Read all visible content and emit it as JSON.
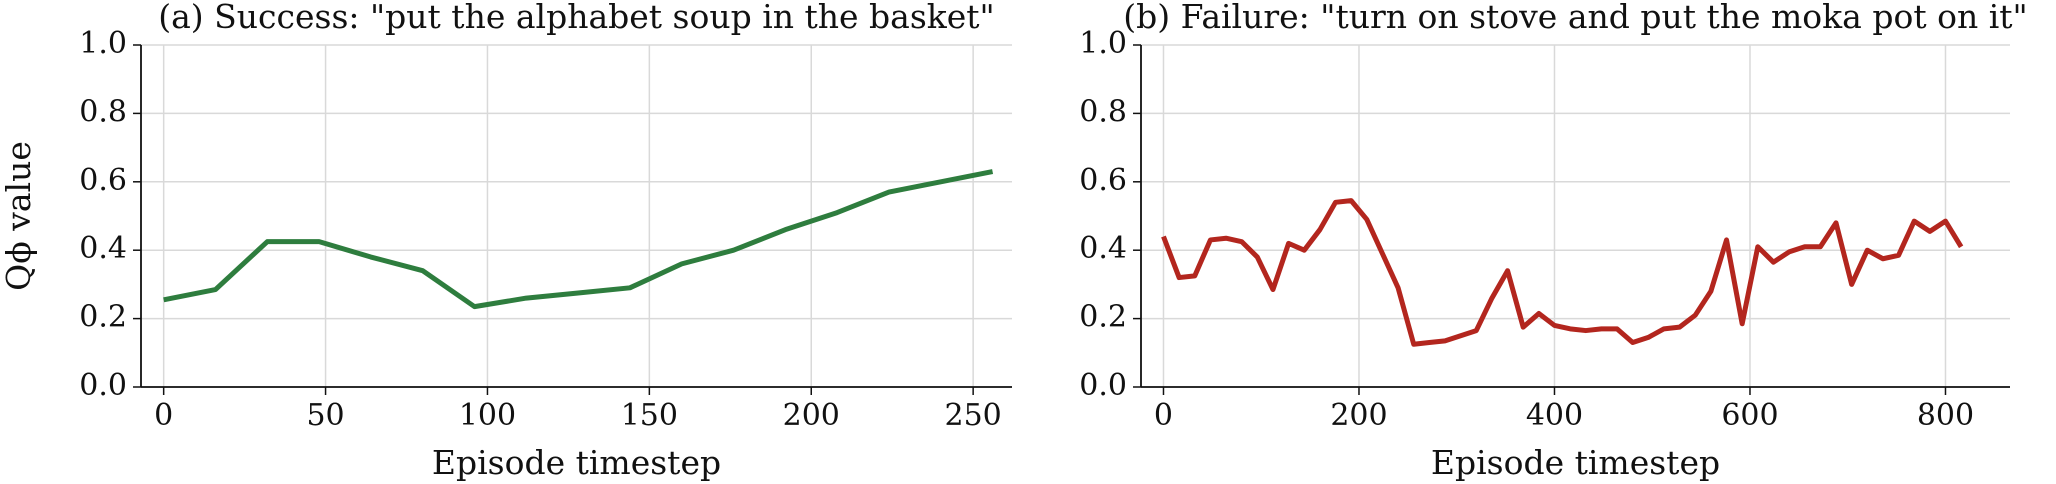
{
  "chart_data": [
    {
      "type": "line",
      "title": "(a) Success: \"put the alphabet soup in the basket\"",
      "xlabel": "Episode timestep",
      "ylabel": "Qϕ value",
      "x": [
        0,
        16,
        32,
        48,
        64,
        80,
        96,
        112,
        128,
        144,
        160,
        176,
        192,
        208,
        224,
        240,
        256
      ],
      "values": [
        0.255,
        0.285,
        0.425,
        0.425,
        0.38,
        0.34,
        0.235,
        0.26,
        0.275,
        0.29,
        0.36,
        0.4,
        0.46,
        0.51,
        0.57,
        0.6,
        0.63
      ],
      "color": "#2e7d3e",
      "xlim": [
        -7,
        262
      ],
      "xticks": [
        0,
        50,
        100,
        150,
        200,
        250
      ],
      "ylim": [
        0,
        1
      ],
      "yticks": [
        {
          "value": 0,
          "label": "0.0"
        },
        {
          "value": 0.2,
          "label": "0.2"
        },
        {
          "value": 0.4,
          "label": "0.4"
        },
        {
          "value": 0.6,
          "label": "0.6"
        },
        {
          "value": 0.8,
          "label": "0.8"
        },
        {
          "value": 1,
          "label": "1.0"
        }
      ],
      "grid": true
    },
    {
      "type": "line",
      "title": "(b) Failure: \"turn on stove and put the moka pot on it\"",
      "xlabel": "Episode timestep",
      "x": [
        0,
        16,
        32,
        48,
        64,
        80,
        96,
        112,
        128,
        144,
        160,
        176,
        192,
        208,
        224,
        240,
        256,
        272,
        288,
        304,
        320,
        336,
        352,
        368,
        384,
        400,
        416,
        432,
        448,
        464,
        480,
        496,
        512,
        528,
        544,
        560,
        576,
        592,
        608,
        624,
        640,
        656,
        672,
        688,
        704,
        720,
        736,
        752,
        768,
        784,
        800,
        816
      ],
      "values": [
        0.44,
        0.32,
        0.325,
        0.43,
        0.435,
        0.425,
        0.38,
        0.285,
        0.42,
        0.4,
        0.46,
        0.54,
        0.545,
        0.49,
        0.39,
        0.29,
        0.125,
        0.13,
        0.135,
        0.15,
        0.165,
        0.26,
        0.34,
        0.175,
        0.215,
        0.18,
        0.17,
        0.165,
        0.17,
        0.17,
        0.13,
        0.145,
        0.17,
        0.175,
        0.21,
        0.28,
        0.43,
        0.185,
        0.41,
        0.365,
        0.395,
        0.41,
        0.41,
        0.48,
        0.3,
        0.4,
        0.375,
        0.385,
        0.485,
        0.455,
        0.485,
        0.41
      ],
      "color": "#b3261e",
      "xlim": [
        -23,
        866
      ],
      "xticks": [
        0,
        200,
        400,
        600,
        800
      ],
      "ylim": [
        0,
        1
      ],
      "yticks": [
        {
          "value": 0,
          "label": "0.0"
        },
        {
          "value": 0.2,
          "label": "0.2"
        },
        {
          "value": 0.4,
          "label": "0.4"
        },
        {
          "value": 0.6,
          "label": "0.6"
        },
        {
          "value": 0.8,
          "label": "0.8"
        },
        {
          "value": 1,
          "label": "1.0"
        }
      ],
      "grid": true
    }
  ]
}
